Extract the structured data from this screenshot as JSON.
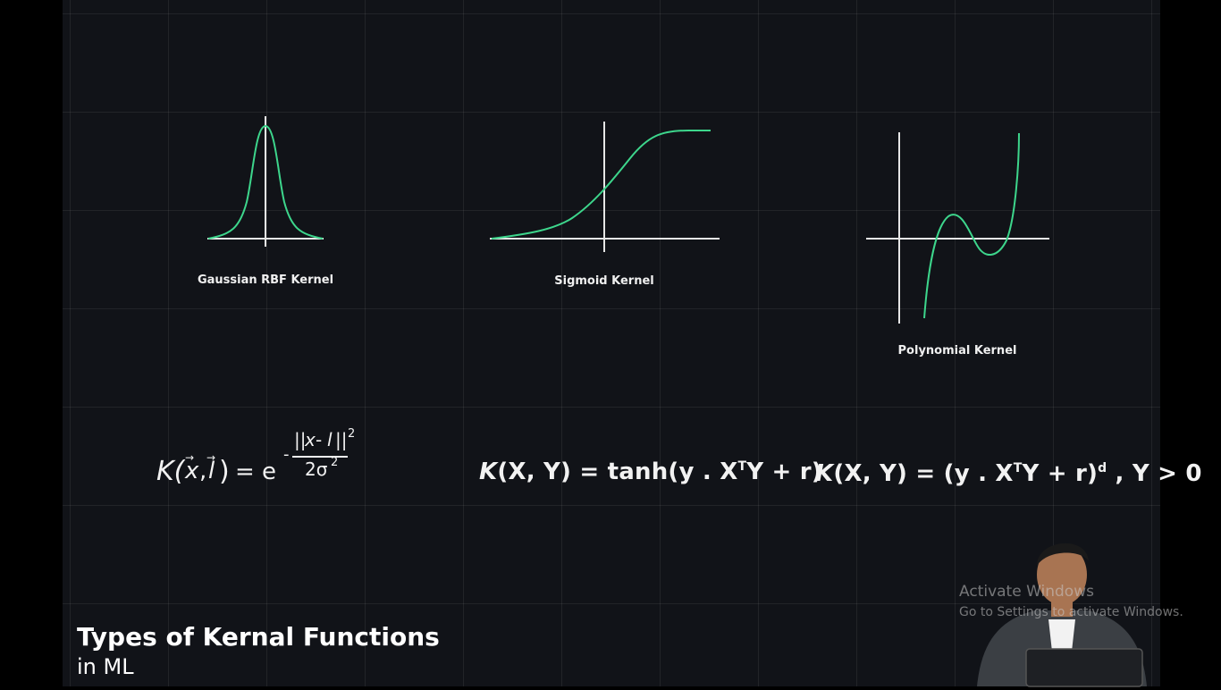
{
  "slide": {
    "title": "Types of Kernal Functions",
    "subtitle": "in ML"
  },
  "kernels": [
    {
      "caption": "Gaussian RBF Kernel",
      "formula": {
        "lhs": "K(",
        "x": "x",
        "comma": ",",
        "l": "l",
        "close": ")",
        "eq": "= e",
        "exponent_sign": "-",
        "numerator_open": "||",
        "numerator_mid": "-",
        "numerator_close": "||",
        "numerator_power": "2",
        "denominator": "2σ",
        "denominator_power": "2"
      }
    },
    {
      "caption": "Sigmoid Kernel",
      "formula": {
        "k": "K",
        "main": "(X, Y) = tanh(y . X",
        "sup": "T",
        "rest": "Y + r)"
      }
    },
    {
      "caption": "Polynomial Kernel",
      "formula": {
        "k": "K",
        "main": "(X, Y) = (y . X",
        "sup": "T",
        "mid": "Y + r)",
        "sup2": "d",
        "rest": " , Y > 0"
      }
    }
  ],
  "watermark": {
    "line1": "Activate Windows",
    "line2": "Go to Settings to activate Windows."
  },
  "colors": {
    "background": "#111318",
    "curve": "#3dd68c",
    "axis": "#e6e6e6",
    "text": "#f2f2f2"
  }
}
